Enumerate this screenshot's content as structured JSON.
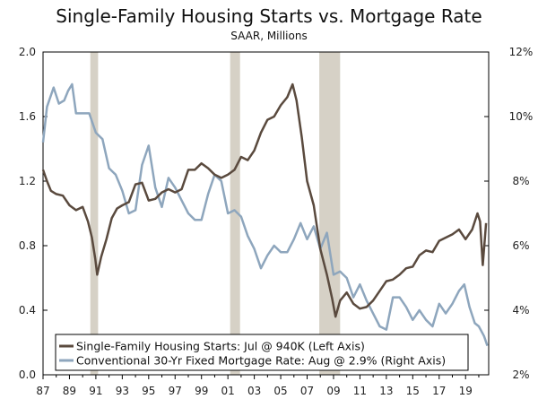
{
  "chart_data": {
    "type": "line",
    "title": "Single-Family Housing Starts vs. Mortgage Rate",
    "subtitle": "SAAR, Millions",
    "x_tick_labels": [
      "87",
      "89",
      "91",
      "93",
      "95",
      "97",
      "99",
      "01",
      "03",
      "05",
      "07",
      "09",
      "11",
      "13",
      "15",
      "17",
      "19"
    ],
    "x_range": [
      1987.0,
      2020.75
    ],
    "left_axis": {
      "ticks": [
        "0.0",
        "0.4",
        "0.8",
        "1.2",
        "1.6",
        "2.0"
      ],
      "range": [
        0,
        2.0
      ]
    },
    "right_axis": {
      "ticks": [
        "2%",
        "4%",
        "6%",
        "8%",
        "10%",
        "12%"
      ],
      "range": [
        2,
        12
      ]
    },
    "recessions": [
      [
        1990.58,
        1991.17
      ],
      [
        2001.17,
        2001.92
      ],
      [
        2007.92,
        2009.5
      ]
    ],
    "series": [
      {
        "name": "Single-Family Housing Starts: Jul @ 940K (Left Axis)",
        "axis": "left",
        "color": "#5a4a3e",
        "points": [
          [
            1987.0,
            1.27
          ],
          [
            1987.3,
            1.2
          ],
          [
            1987.6,
            1.14
          ],
          [
            1988.0,
            1.12
          ],
          [
            1988.5,
            1.11
          ],
          [
            1989.0,
            1.05
          ],
          [
            1989.5,
            1.02
          ],
          [
            1990.0,
            1.04
          ],
          [
            1990.4,
            0.95
          ],
          [
            1990.7,
            0.85
          ],
          [
            1990.95,
            0.72
          ],
          [
            1991.1,
            0.62
          ],
          [
            1991.4,
            0.73
          ],
          [
            1991.8,
            0.84
          ],
          [
            1992.2,
            0.97
          ],
          [
            1992.6,
            1.03
          ],
          [
            1993.0,
            1.05
          ],
          [
            1993.5,
            1.07
          ],
          [
            1994.0,
            1.18
          ],
          [
            1994.5,
            1.19
          ],
          [
            1995.0,
            1.08
          ],
          [
            1995.5,
            1.09
          ],
          [
            1996.0,
            1.13
          ],
          [
            1996.5,
            1.15
          ],
          [
            1997.0,
            1.13
          ],
          [
            1997.5,
            1.15
          ],
          [
            1998.0,
            1.27
          ],
          [
            1998.5,
            1.27
          ],
          [
            1999.0,
            1.31
          ],
          [
            1999.5,
            1.28
          ],
          [
            2000.0,
            1.24
          ],
          [
            2000.5,
            1.22
          ],
          [
            2001.0,
            1.24
          ],
          [
            2001.5,
            1.27
          ],
          [
            2002.0,
            1.35
          ],
          [
            2002.5,
            1.33
          ],
          [
            2003.0,
            1.39
          ],
          [
            2003.5,
            1.5
          ],
          [
            2004.0,
            1.58
          ],
          [
            2004.5,
            1.6
          ],
          [
            2005.0,
            1.67
          ],
          [
            2005.5,
            1.72
          ],
          [
            2005.9,
            1.8
          ],
          [
            2006.2,
            1.7
          ],
          [
            2006.6,
            1.47
          ],
          [
            2007.0,
            1.2
          ],
          [
            2007.5,
            1.05
          ],
          [
            2008.0,
            0.78
          ],
          [
            2008.5,
            0.62
          ],
          [
            2008.9,
            0.47
          ],
          [
            2009.15,
            0.36
          ],
          [
            2009.5,
            0.46
          ],
          [
            2010.0,
            0.51
          ],
          [
            2010.5,
            0.44
          ],
          [
            2011.0,
            0.41
          ],
          [
            2011.5,
            0.42
          ],
          [
            2012.0,
            0.46
          ],
          [
            2012.5,
            0.52
          ],
          [
            2013.0,
            0.58
          ],
          [
            2013.5,
            0.59
          ],
          [
            2014.0,
            0.62
          ],
          [
            2014.5,
            0.66
          ],
          [
            2015.0,
            0.67
          ],
          [
            2015.5,
            0.74
          ],
          [
            2016.0,
            0.77
          ],
          [
            2016.5,
            0.76
          ],
          [
            2017.0,
            0.83
          ],
          [
            2017.5,
            0.85
          ],
          [
            2018.0,
            0.87
          ],
          [
            2018.5,
            0.9
          ],
          [
            2019.0,
            0.84
          ],
          [
            2019.5,
            0.9
          ],
          [
            2019.9,
            1.0
          ],
          [
            2020.1,
            0.95
          ],
          [
            2020.3,
            0.68
          ],
          [
            2020.55,
            0.94
          ]
        ]
      },
      {
        "name": "Conventional 30-Yr Fixed Mortgage Rate: Aug @ 2.9% (Right Axis)",
        "axis": "right",
        "color": "#8ea6bd",
        "points": [
          [
            1987.0,
            9.2
          ],
          [
            1987.3,
            10.3
          ],
          [
            1987.8,
            10.9
          ],
          [
            1988.2,
            10.4
          ],
          [
            1988.6,
            10.5
          ],
          [
            1988.9,
            10.8
          ],
          [
            1989.2,
            11.0
          ],
          [
            1989.5,
            10.1
          ],
          [
            1990.0,
            10.1
          ],
          [
            1990.5,
            10.1
          ],
          [
            1991.0,
            9.5
          ],
          [
            1991.5,
            9.3
          ],
          [
            1992.0,
            8.4
          ],
          [
            1992.5,
            8.2
          ],
          [
            1993.0,
            7.7
          ],
          [
            1993.5,
            7.0
          ],
          [
            1994.0,
            7.1
          ],
          [
            1994.5,
            8.5
          ],
          [
            1995.0,
            9.1
          ],
          [
            1995.5,
            7.8
          ],
          [
            1996.0,
            7.2
          ],
          [
            1996.5,
            8.1
          ],
          [
            1997.0,
            7.8
          ],
          [
            1997.5,
            7.4
          ],
          [
            1998.0,
            7.0
          ],
          [
            1998.5,
            6.8
          ],
          [
            1999.0,
            6.8
          ],
          [
            1999.5,
            7.6
          ],
          [
            2000.0,
            8.2
          ],
          [
            2000.5,
            8.0
          ],
          [
            2001.0,
            7.0
          ],
          [
            2001.5,
            7.1
          ],
          [
            2002.0,
            6.9
          ],
          [
            2002.5,
            6.3
          ],
          [
            2003.0,
            5.9
          ],
          [
            2003.5,
            5.3
          ],
          [
            2004.0,
            5.7
          ],
          [
            2004.5,
            6.0
          ],
          [
            2005.0,
            5.8
          ],
          [
            2005.5,
            5.8
          ],
          [
            2006.0,
            6.2
          ],
          [
            2006.5,
            6.7
          ],
          [
            2007.0,
            6.2
          ],
          [
            2007.5,
            6.6
          ],
          [
            2008.0,
            5.9
          ],
          [
            2008.5,
            6.4
          ],
          [
            2009.0,
            5.1
          ],
          [
            2009.5,
            5.2
          ],
          [
            2010.0,
            5.0
          ],
          [
            2010.5,
            4.4
          ],
          [
            2011.0,
            4.8
          ],
          [
            2011.5,
            4.3
          ],
          [
            2012.0,
            3.9
          ],
          [
            2012.5,
            3.5
          ],
          [
            2013.0,
            3.4
          ],
          [
            2013.5,
            4.4
          ],
          [
            2014.0,
            4.4
          ],
          [
            2014.5,
            4.1
          ],
          [
            2015.0,
            3.7
          ],
          [
            2015.5,
            4.0
          ],
          [
            2016.0,
            3.7
          ],
          [
            2016.5,
            3.5
          ],
          [
            2017.0,
            4.2
          ],
          [
            2017.5,
            3.9
          ],
          [
            2018.0,
            4.2
          ],
          [
            2018.5,
            4.6
          ],
          [
            2018.9,
            4.8
          ],
          [
            2019.3,
            4.1
          ],
          [
            2019.7,
            3.6
          ],
          [
            2020.0,
            3.5
          ],
          [
            2020.4,
            3.2
          ],
          [
            2020.65,
            2.9
          ]
        ]
      }
    ],
    "legend": {
      "position": "bottom-left",
      "entries": [
        "Single-Family Housing Starts: Jul @ 940K (Left Axis)",
        "Conventional 30-Yr Fixed Mortgage Rate: Aug @ 2.9% (Right Axis)"
      ]
    }
  }
}
